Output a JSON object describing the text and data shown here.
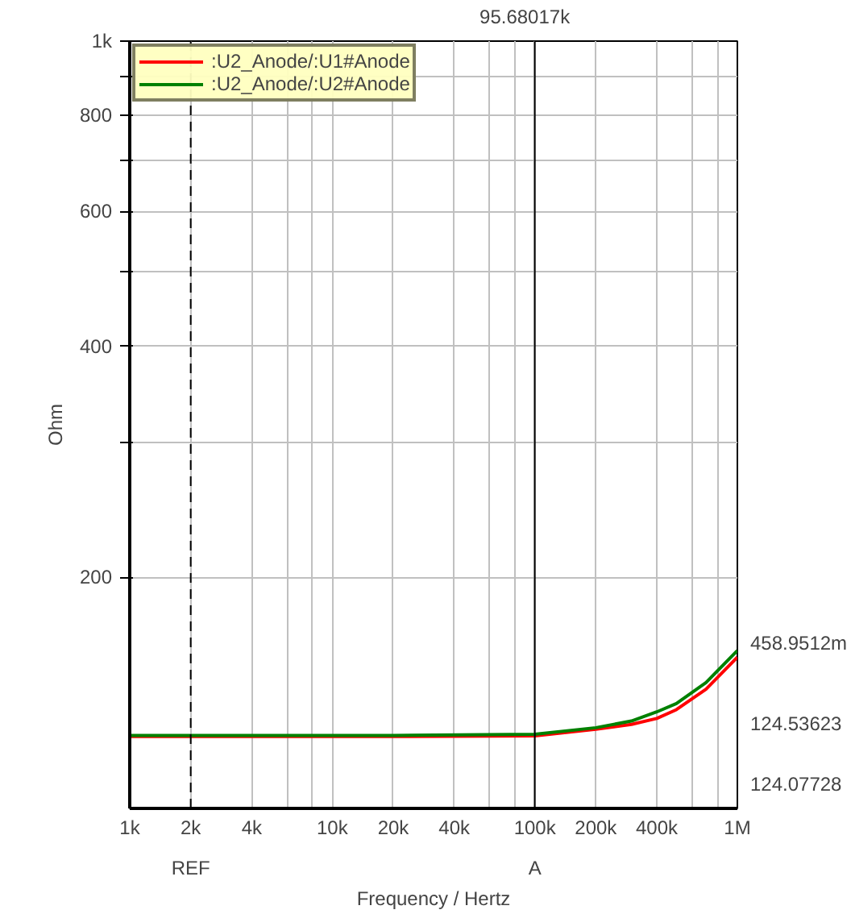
{
  "chart_data": {
    "type": "line",
    "xlabel": "Frequency / Hertz",
    "ylabel": "Ohm",
    "log": "xy",
    "xlim": [
      1000,
      1000000
    ],
    "ylim": [
      100,
      1000
    ],
    "xticks": [
      {
        "value": 1000,
        "label": "1k"
      },
      {
        "value": 2000,
        "label": "2k"
      },
      {
        "value": 4000,
        "label": "4k"
      },
      {
        "value": 6000,
        "label": null
      },
      {
        "value": 8000,
        "label": null
      },
      {
        "value": 10000,
        "label": "10k"
      },
      {
        "value": 20000,
        "label": "20k"
      },
      {
        "value": 40000,
        "label": "40k"
      },
      {
        "value": 60000,
        "label": null
      },
      {
        "value": 80000,
        "label": null
      },
      {
        "value": 100000,
        "label": "100k"
      },
      {
        "value": 200000,
        "label": "200k"
      },
      {
        "value": 400000,
        "label": "400k"
      },
      {
        "value": 600000,
        "label": null
      },
      {
        "value": 800000,
        "label": null
      },
      {
        "value": 1000000,
        "label": "1M"
      }
    ],
    "yticks": [
      {
        "value": 200,
        "label": "200"
      },
      {
        "value": 300,
        "label": null
      },
      {
        "value": 400,
        "label": "400"
      },
      {
        "value": 500,
        "label": null
      },
      {
        "value": 600,
        "label": "600"
      },
      {
        "value": 700,
        "label": null
      },
      {
        "value": 800,
        "label": "800"
      },
      {
        "value": 900,
        "label": null
      },
      {
        "value": 1000,
        "label": "1k"
      }
    ],
    "x": [
      1000,
      20000,
      100000,
      200000,
      300000,
      400000,
      500000,
      700000,
      1000000
    ],
    "series": [
      {
        "name": ":U2_Anode/:U1#Anode",
        "color": "#ff0000",
        "values": [
          124.1,
          124.1,
          124.3,
          126.8,
          128.7,
          131,
          134.5,
          143,
          157.4
        ]
      },
      {
        "name": ":U2_Anode/:U2#Anode",
        "color": "#008000",
        "values": [
          124.5,
          124.5,
          124.9,
          127.4,
          130,
          133.6,
          137,
          145.9,
          160.6
        ]
      }
    ],
    "ref_lines": [
      {
        "axis": "x",
        "value": 2000,
        "label": "REF",
        "line_style": "dashed",
        "color": "#000000"
      },
      {
        "axis": "x",
        "value": 100000,
        "label": "A",
        "line_style": "solid",
        "color": "#000000"
      }
    ],
    "annotations": [
      "95.68017k",
      "458.9512m",
      "124.53623",
      "124.07728"
    ],
    "grid": true,
    "legend": "top left",
    "marker": "none",
    "line_style": "solid"
  }
}
